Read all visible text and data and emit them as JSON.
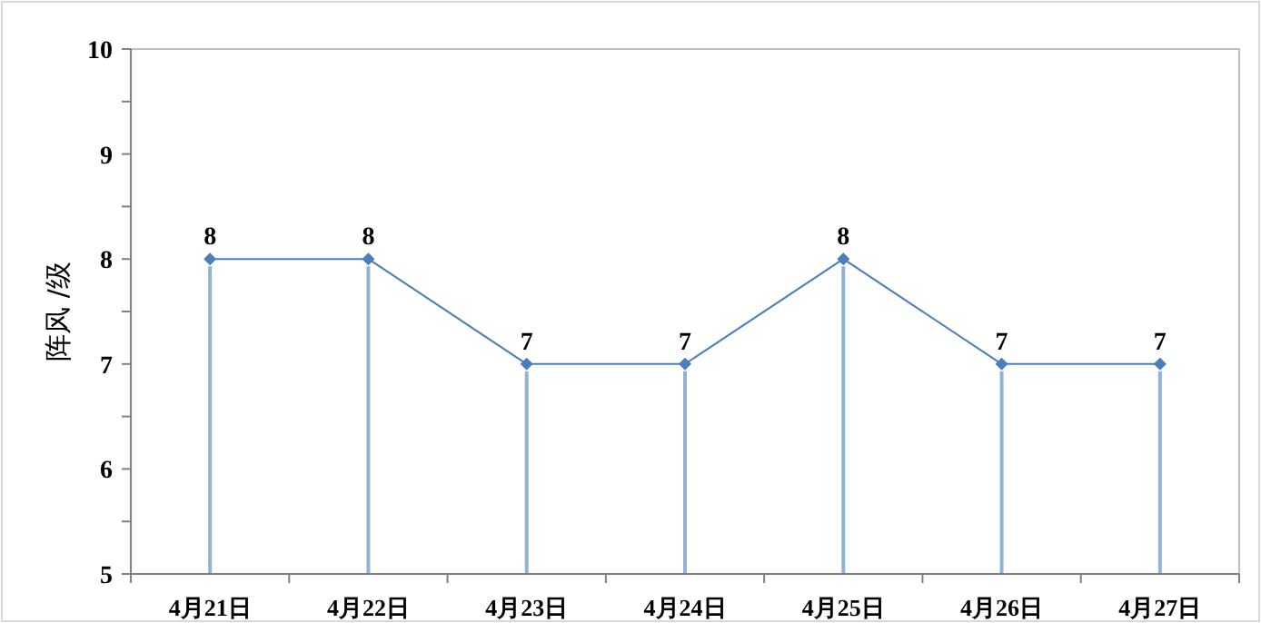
{
  "chart_data": {
    "type": "lollipop",
    "ylabel": "阵风 /级",
    "categories": [
      "4月21日",
      "4月22日",
      "4月23日",
      "4月24日",
      "4月25日",
      "4月26日",
      "4月27日"
    ],
    "series": [
      {
        "color": "#4a7ebb",
        "marker": "diamond",
        "line_style": "solid",
        "values": [
          8,
          8,
          7,
          7,
          8,
          7,
          7
        ]
      }
    ],
    "ylim": [
      5,
      10
    ],
    "yticks": [
      5,
      {
        "value": 5.5,
        "label": null
      },
      6,
      {
        "value": 6.5,
        "label": null
      },
      7,
      {
        "value": 7.5,
        "label": null
      },
      8,
      {
        "value": 8.5,
        "label": null
      },
      9,
      {
        "value": 9.5,
        "label": null
      },
      10
    ],
    "data_labels": true,
    "grid": false
  }
}
